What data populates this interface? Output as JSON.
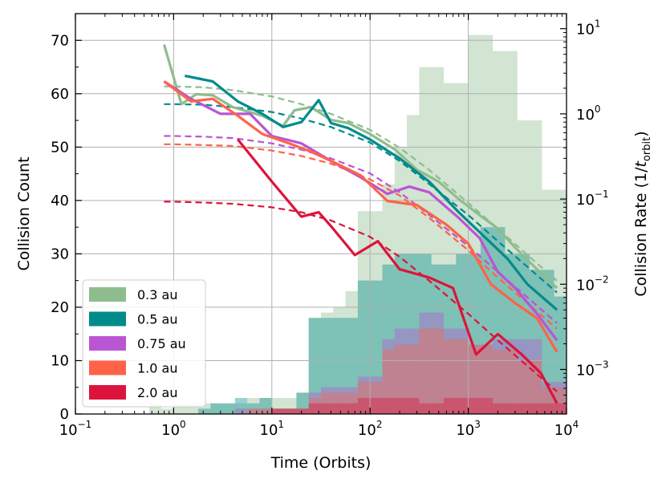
{
  "chart_data": {
    "type": "histogram+line",
    "xlabel": "Time (Orbits)",
    "ylabel_left": "Collision Count",
    "ylabel_right": "Collision Rate (1/t_orbit)",
    "xscale": "log",
    "xlim": [
      0.1,
      10000
    ],
    "ylim_left": [
      0,
      75
    ],
    "ylim_right": [
      0.0003,
      15
    ],
    "grid": true,
    "legend_position": "lower-left",
    "x_tick_labels": [
      {
        "base": "10",
        "exp": "−1"
      },
      {
        "base": "10",
        "exp": "0"
      },
      {
        "base": "10",
        "exp": "1"
      },
      {
        "base": "10",
        "exp": "2"
      },
      {
        "base": "10",
        "exp": "3"
      },
      {
        "base": "10",
        "exp": "4"
      }
    ],
    "y_left_tick_labels": [
      "0",
      "10",
      "20",
      "30",
      "40",
      "50",
      "60",
      "70"
    ],
    "y_right_tick_labels": [
      {
        "base": "10",
        "exp": "−3"
      },
      {
        "base": "10",
        "exp": "−2"
      },
      {
        "base": "10",
        "exp": "−1"
      },
      {
        "base": "10",
        "exp": "0"
      },
      {
        "base": "10",
        "exp": "1"
      }
    ],
    "hist_log_edges": [
      -0.25,
      -0.125,
      0.0,
      0.125,
      0.25,
      0.375,
      0.5,
      0.625,
      0.75,
      0.875,
      1.0,
      1.125,
      1.25,
      1.375,
      1.5,
      1.625,
      1.75,
      1.875,
      2.0,
      2.125,
      2.25,
      2.375,
      2.5,
      2.625,
      2.75,
      2.875,
      3.0,
      3.125,
      3.25,
      3.375,
      3.5,
      3.625,
      3.75,
      3.875,
      4.0
    ],
    "series": [
      {
        "name": "0.3 au",
        "color": "#8fbc8f",
        "hist_counts": [
          2,
          1,
          2,
          2,
          2,
          2,
          2,
          2,
          3,
          3,
          3,
          3,
          4,
          18,
          19,
          20,
          23,
          38,
          38,
          43,
          50,
          56,
          65,
          65,
          62,
          62,
          71,
          71,
          68,
          68,
          55,
          55,
          42,
          42
        ],
        "rate_x": [
          0.8,
          1.2,
          1.7,
          2.5,
          4.0,
          8.0,
          13,
          17,
          25,
          40,
          60,
          100,
          180,
          300,
          500,
          800,
          1300,
          2000,
          3000,
          5000,
          8000
        ],
        "rate_y": [
          6.5,
          1.3,
          1.7,
          1.65,
          1.2,
          0.95,
          0.72,
          1.1,
          1.2,
          0.85,
          0.78,
          0.58,
          0.38,
          0.22,
          0.16,
          0.1,
          0.065,
          0.045,
          0.027,
          0.015,
          0.009
        ],
        "fit_x": [
          0.8,
          1,
          2,
          4,
          10,
          20,
          40,
          100,
          200,
          400,
          1000,
          2000,
          4000,
          8000
        ],
        "fit_y": [
          2.1,
          2.1,
          2.05,
          1.9,
          1.6,
          1.3,
          1.0,
          0.65,
          0.4,
          0.22,
          0.09,
          0.045,
          0.022,
          0.011
        ]
      },
      {
        "name": "0.5 au",
        "color": "#008b8b",
        "hist_counts": [
          0,
          0,
          0,
          0,
          1,
          2,
          2,
          3,
          2,
          3,
          1,
          1,
          4,
          18,
          18,
          18,
          18,
          25,
          25,
          28,
          30,
          30,
          30,
          28,
          28,
          30,
          30,
          35,
          35,
          30,
          30,
          27,
          27,
          22
        ],
        "rate_x": [
          1.3,
          2.5,
          4.5,
          8.0,
          13,
          20,
          30,
          40,
          60,
          100,
          200,
          400,
          800,
          1500,
          2500,
          4000,
          8000
        ],
        "rate_y": [
          2.8,
          2.4,
          1.4,
          1.0,
          0.7,
          0.8,
          1.45,
          0.78,
          0.68,
          0.5,
          0.3,
          0.16,
          0.07,
          0.035,
          0.02,
          0.01,
          0.005
        ],
        "fit_x": [
          0.8,
          1,
          2,
          4,
          10,
          20,
          40,
          100,
          200,
          400,
          1000,
          2000,
          4000,
          8000
        ],
        "fit_y": [
          1.3,
          1.3,
          1.28,
          1.2,
          1.05,
          0.88,
          0.7,
          0.46,
          0.28,
          0.15,
          0.065,
          0.032,
          0.016,
          0.008
        ]
      },
      {
        "name": "0.75 au",
        "color": "#ba55d3",
        "hist_counts": [
          0,
          0,
          0,
          0,
          0,
          0,
          0,
          1,
          1,
          1,
          1,
          1,
          1,
          4,
          5,
          5,
          5,
          7,
          7,
          14,
          16,
          16,
          19,
          19,
          16,
          16,
          13,
          13,
          14,
          14,
          14,
          14,
          6,
          6
        ],
        "rate_x": [
          0.8,
          1.5,
          3.0,
          6.0,
          10,
          20,
          40,
          80,
          150,
          250,
          400,
          800,
          1300,
          2000,
          3000,
          5000,
          8000
        ],
        "rate_y": [
          2.4,
          1.5,
          1.0,
          1.0,
          0.55,
          0.45,
          0.28,
          0.18,
          0.115,
          0.14,
          0.12,
          0.06,
          0.035,
          0.014,
          0.009,
          0.0045,
          0.0022
        ],
        "fit_x": [
          0.8,
          1,
          2,
          4,
          10,
          20,
          40,
          100,
          200,
          400,
          1000,
          2000,
          4000,
          8000
        ],
        "fit_y": [
          0.55,
          0.55,
          0.54,
          0.52,
          0.45,
          0.38,
          0.3,
          0.2,
          0.12,
          0.065,
          0.028,
          0.014,
          0.007,
          0.0035
        ]
      },
      {
        "name": "1.0 au",
        "color": "#ff6347",
        "hist_counts": [
          0,
          0,
          0,
          0,
          0,
          0,
          0,
          0,
          1,
          1,
          1,
          1,
          1,
          3,
          4,
          4,
          4,
          6,
          6,
          12,
          13,
          13,
          16,
          16,
          14,
          14,
          13,
          13,
          12,
          12,
          10,
          10,
          5,
          5
        ],
        "rate_x": [
          0.8,
          1.5,
          2.5,
          4.5,
          8.0,
          15,
          25,
          40,
          80,
          150,
          300,
          600,
          1000,
          1700,
          3000,
          5000,
          8000
        ],
        "rate_y": [
          2.4,
          1.4,
          1.5,
          0.95,
          0.58,
          0.45,
          0.36,
          0.28,
          0.19,
          0.095,
          0.085,
          0.05,
          0.03,
          0.01,
          0.006,
          0.004,
          0.0016
        ],
        "fit_x": [
          0.8,
          1,
          2,
          4,
          10,
          20,
          40,
          100,
          200,
          400,
          1000,
          2000,
          4000,
          8000
        ],
        "fit_y": [
          0.44,
          0.44,
          0.43,
          0.42,
          0.37,
          0.32,
          0.26,
          0.17,
          0.11,
          0.06,
          0.025,
          0.012,
          0.006,
          0.003
        ]
      },
      {
        "name": "2.0 au",
        "color": "#dc143c",
        "hist_counts": [
          0,
          0,
          0,
          0,
          0,
          0,
          0,
          0,
          0,
          0,
          1,
          1,
          1,
          2,
          2,
          2,
          2,
          3,
          3,
          3,
          3,
          3,
          2,
          2,
          3,
          3,
          3,
          3,
          2,
          2,
          2,
          2,
          2,
          2
        ],
        "rate_x": [
          4.5,
          10,
          20,
          30,
          40,
          70,
          120,
          200,
          400,
          700,
          1200,
          2000,
          3500,
          5500,
          8000
        ],
        "rate_y": [
          0.5,
          0.16,
          0.062,
          0.07,
          0.048,
          0.022,
          0.032,
          0.015,
          0.012,
          0.009,
          0.0015,
          0.0026,
          0.0015,
          0.0009,
          0.0004
        ],
        "fit_x": [
          0.8,
          1,
          2,
          4,
          10,
          20,
          40,
          100,
          200,
          400,
          1000,
          2000,
          4000,
          8000
        ],
        "fit_y": [
          0.093,
          0.093,
          0.091,
          0.088,
          0.08,
          0.07,
          0.056,
          0.036,
          0.021,
          0.011,
          0.0045,
          0.0022,
          0.0011,
          0.00055
        ]
      }
    ]
  }
}
